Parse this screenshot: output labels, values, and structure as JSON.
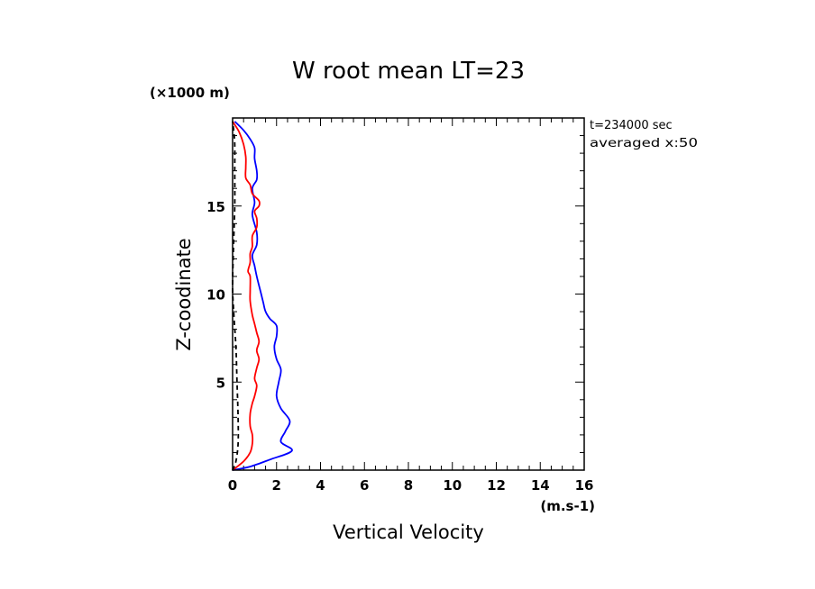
{
  "chart_data": {
    "type": "line",
    "title": "W root mean LT=23",
    "xlabel": "Vertical Velocity",
    "ylabel": "Z-coodinate",
    "xunit": "(m.s-1)",
    "yunit": "(×1000 m)",
    "xlim": [
      0,
      16
    ],
    "ylim": [
      0,
      20
    ],
    "xticks": [
      0,
      2,
      4,
      6,
      8,
      10,
      12,
      14,
      16
    ],
    "yticks": [
      5,
      10,
      15
    ],
    "annotations": [
      "t=234000 sec",
      "averaged  x:50"
    ],
    "grid": false,
    "colors": {
      "series1": "#0000ff",
      "series2": "#ff0000",
      "series3": "#000000"
    },
    "series": [
      {
        "color": "#0000ff",
        "style": "solid",
        "points": [
          [
            0,
            0
          ],
          [
            0.8,
            0.2
          ],
          [
            1.7,
            0.6
          ],
          [
            2.7,
            1.1
          ],
          [
            2.2,
            1.6
          ],
          [
            2.4,
            2.2
          ],
          [
            2.6,
            2.8
          ],
          [
            2.2,
            3.5
          ],
          [
            2.0,
            4.2
          ],
          [
            2.1,
            5.0
          ],
          [
            2.2,
            5.7
          ],
          [
            2.0,
            6.3
          ],
          [
            1.9,
            7.0
          ],
          [
            2.0,
            7.6
          ],
          [
            2.0,
            8.2
          ],
          [
            1.7,
            8.6
          ],
          [
            1.5,
            9.0
          ],
          [
            1.4,
            9.5
          ],
          [
            1.3,
            10.0
          ],
          [
            1.1,
            11.0
          ],
          [
            1.0,
            11.6
          ],
          [
            0.9,
            12.2
          ],
          [
            1.1,
            12.8
          ],
          [
            1.1,
            13.5
          ],
          [
            0.9,
            14.5
          ],
          [
            1.0,
            15.2
          ],
          [
            0.9,
            16.0
          ],
          [
            1.1,
            16.5
          ],
          [
            1.1,
            17.0
          ],
          [
            1.0,
            17.7
          ],
          [
            1.0,
            18.3
          ],
          [
            0.8,
            18.8
          ],
          [
            0.5,
            19.3
          ],
          [
            0.1,
            19.8
          ]
        ]
      },
      {
        "color": "#ff0000",
        "style": "solid",
        "points": [
          [
            0,
            0
          ],
          [
            0.5,
            0.5
          ],
          [
            0.8,
            1.0
          ],
          [
            0.9,
            1.5
          ],
          [
            0.9,
            2.0
          ],
          [
            0.8,
            2.5
          ],
          [
            0.8,
            3.2
          ],
          [
            0.9,
            3.8
          ],
          [
            1.0,
            4.2
          ],
          [
            1.1,
            4.8
          ],
          [
            1.0,
            5.2
          ],
          [
            1.1,
            5.8
          ],
          [
            1.2,
            6.3
          ],
          [
            1.1,
            6.8
          ],
          [
            1.2,
            7.3
          ],
          [
            1.1,
            7.8
          ],
          [
            1.0,
            8.3
          ],
          [
            0.9,
            8.8
          ],
          [
            0.8,
            9.6
          ],
          [
            0.8,
            10.2
          ],
          [
            0.8,
            11.0
          ],
          [
            0.7,
            11.3
          ],
          [
            0.8,
            11.8
          ],
          [
            0.8,
            12.3
          ],
          [
            0.9,
            12.7
          ],
          [
            0.9,
            13.3
          ],
          [
            1.1,
            13.8
          ],
          [
            1.1,
            14.3
          ],
          [
            1.0,
            14.7
          ],
          [
            1.2,
            15.0
          ],
          [
            1.2,
            15.3
          ],
          [
            0.9,
            15.7
          ],
          [
            0.8,
            16.2
          ],
          [
            0.6,
            16.6
          ],
          [
            0.6,
            17.2
          ],
          [
            0.6,
            17.8
          ],
          [
            0.5,
            18.5
          ],
          [
            0.3,
            19.2
          ],
          [
            0.0,
            19.8
          ]
        ]
      },
      {
        "color": "#000000",
        "style": "dashed",
        "points": [
          [
            0,
            0
          ],
          [
            0.15,
            0.5
          ],
          [
            0.25,
            1.5
          ],
          [
            0.25,
            3.0
          ],
          [
            0.2,
            5.0
          ],
          [
            0.15,
            7.0
          ],
          [
            0.05,
            9.0
          ],
          [
            0.0,
            10.5
          ],
          [
            0.05,
            13.0
          ],
          [
            0.1,
            15.0
          ],
          [
            0.1,
            17.0
          ],
          [
            0.1,
            18.5
          ],
          [
            0.05,
            19.3
          ],
          [
            0.0,
            19.8
          ]
        ]
      }
    ]
  }
}
